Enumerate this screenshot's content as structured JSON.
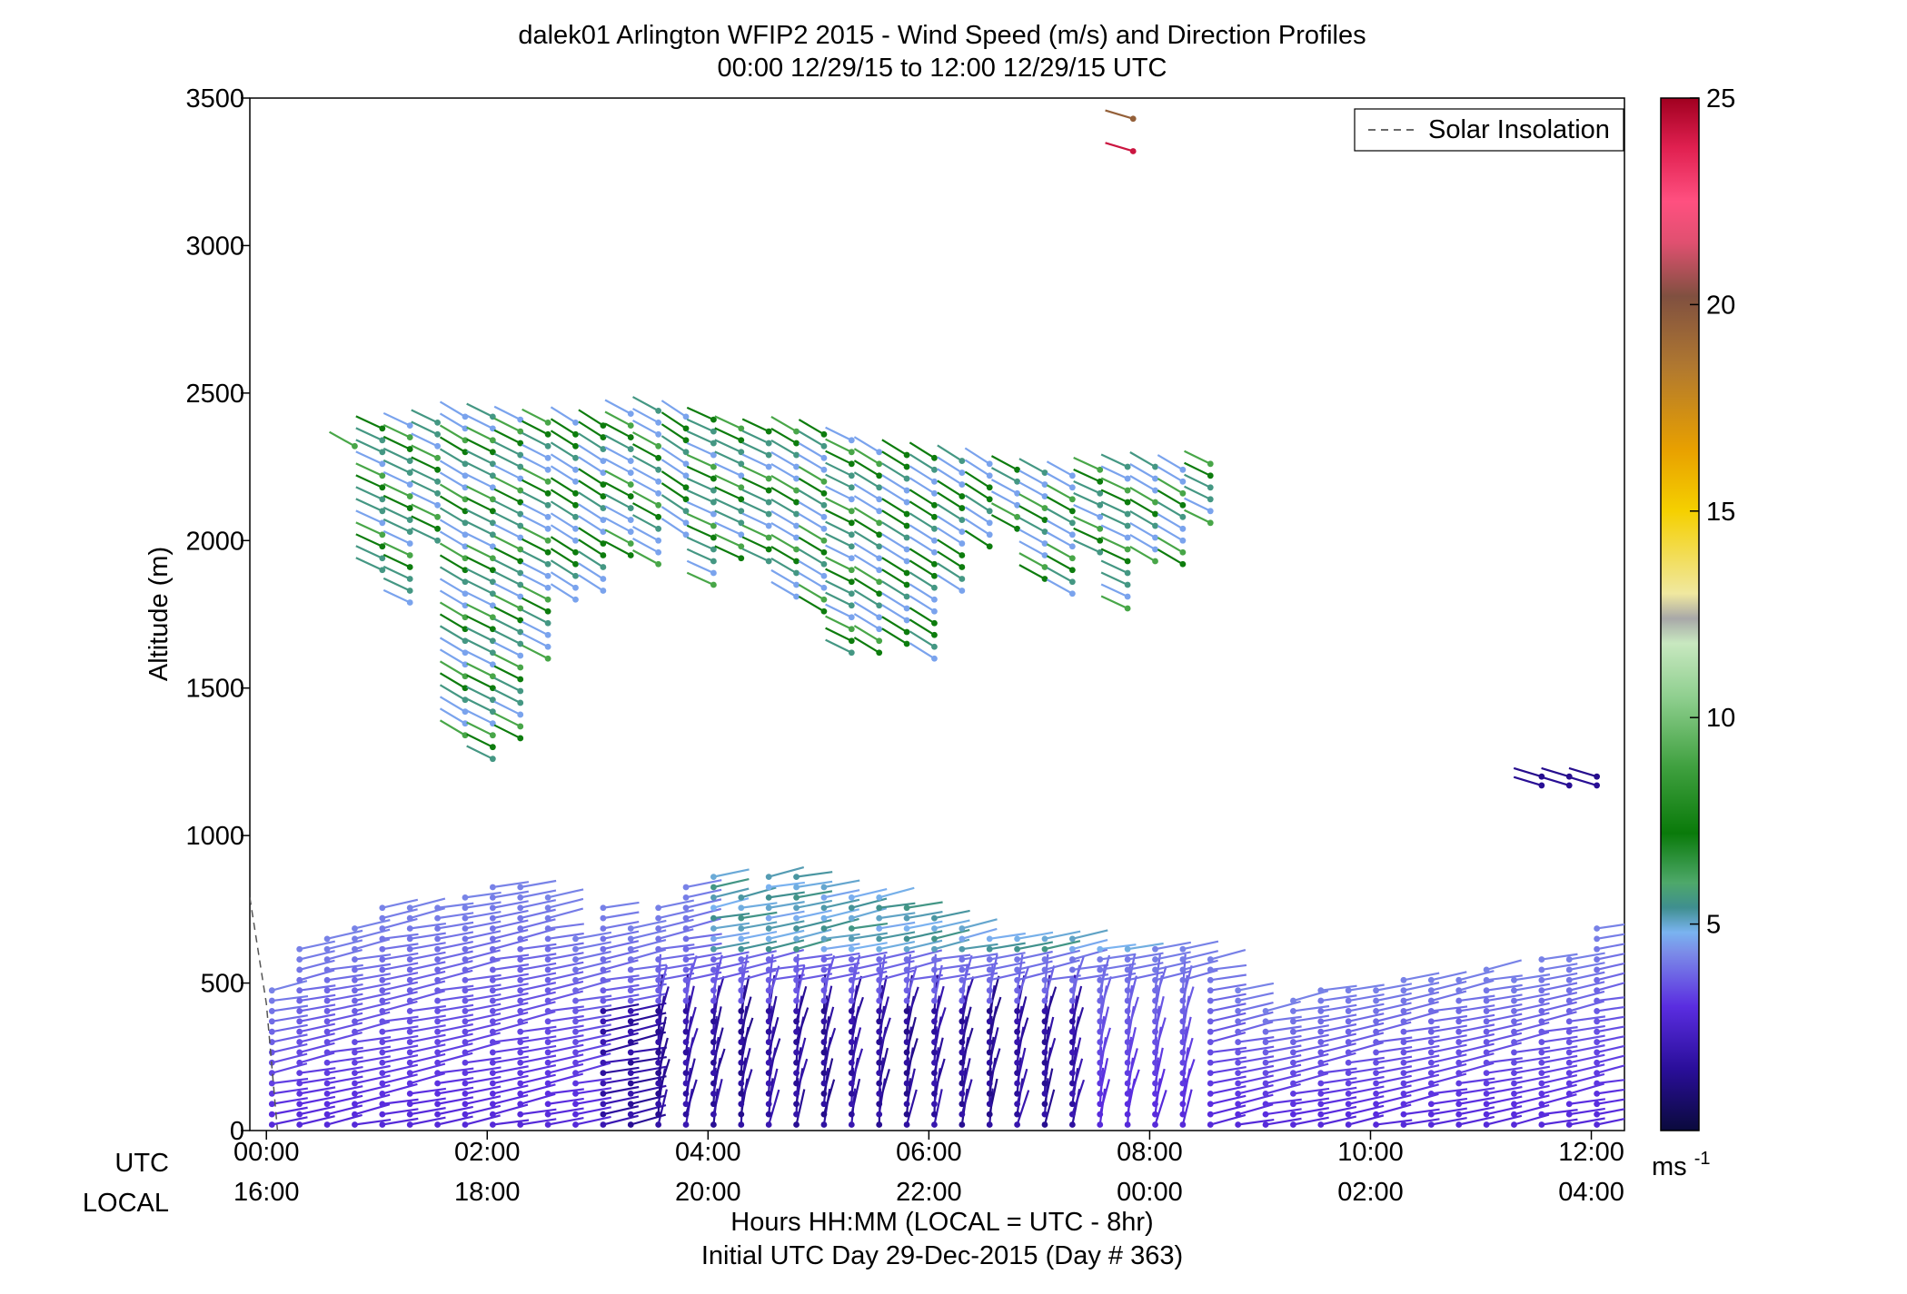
{
  "chart_data": {
    "type": "scatter",
    "title": "dalek01 Arlington WFIP2 2015 - Wind Speed (m/s) and Direction Profiles",
    "subtitle": "00:00 12/29/15 to 12:00 12/29/15  UTC",
    "ylabel": "Altitude (m)",
    "xlabel": "Hours HH:MM  (LOCAL = UTC - 8hr)",
    "xlabel2": "Initial UTC Day 29-Dec-2015 (Day # 363)",
    "row_labels": [
      "UTC",
      "LOCAL"
    ],
    "xlim": [
      -0.15,
      12.3
    ],
    "ylim": [
      0,
      3500
    ],
    "y_ticks": [
      "0",
      "500",
      "1000",
      "1500",
      "2000",
      "2500",
      "3000",
      "3500"
    ],
    "y_tick_values": [
      0,
      500,
      1000,
      1500,
      2000,
      2500,
      3000,
      3500
    ],
    "x_tick_values": [
      0,
      2,
      4,
      6,
      8,
      10,
      12
    ],
    "x_ticks_utc": [
      "00:00",
      "02:00",
      "04:00",
      "06:00",
      "08:00",
      "10:00",
      "12:00"
    ],
    "x_ticks_local": [
      "16:00",
      "18:00",
      "20:00",
      "22:00",
      "00:00",
      "02:00",
      "04:00"
    ],
    "legend": {
      "label": "Solar Insolation",
      "placement": "top-right"
    },
    "colorbar": {
      "range": [
        0,
        25
      ],
      "ticks": [
        "5",
        "10",
        "15",
        "20",
        "25"
      ],
      "tick_values": [
        5,
        10,
        15,
        20,
        25
      ],
      "unit_label": "ms",
      "unit_exponent": "-1"
    },
    "colors": {
      "stops": [
        "#0a0a3c",
        "#2a0e9a",
        "#5a2de0",
        "#7b8be8",
        "#7ab3f0",
        "#3f8f8f",
        "#4ea86a",
        "#0a7a0a",
        "#3fa03f",
        "#8fcf8f",
        "#c8e8c0",
        "#a8a8a8",
        "#f0e8a0",
        "#f5d000",
        "#e8a000",
        "#b07830",
        "#805040",
        "#e05070",
        "#ff5080",
        "#e02050",
        "#a00020"
      ],
      "stop_values": [
        0,
        1.5,
        3,
        4.3,
        4.8,
        5.4,
        6.0,
        7.2,
        8.8,
        10.5,
        11.8,
        12.4,
        13.0,
        15.0,
        16.5,
        18.5,
        20.2,
        21.5,
        22.5,
        23.8,
        25
      ],
      "insolation": "#555555"
    },
    "insolation_curve": {
      "x": [
        -0.15,
        0.0,
        0.1
      ],
      "y": [
        790,
        430,
        0
      ]
    },
    "series": [
      {
        "profiles_x": [
          0.05,
          0.3,
          0.55,
          0.8,
          1.05,
          1.3,
          1.55,
          1.8,
          2.05,
          2.3,
          2.55,
          2.8,
          3.05,
          3.3,
          3.55,
          3.8,
          4.05,
          4.3,
          4.55,
          4.8,
          5.05,
          5.3,
          5.55,
          5.8,
          6.05,
          6.3,
          6.55,
          6.8,
          7.05,
          7.3,
          7.55,
          7.8,
          8.05,
          8.3,
          8.55,
          8.8,
          9.05,
          9.3,
          9.55,
          9.8,
          10.05,
          10.3,
          10.55,
          10.8,
          11.05,
          11.3,
          11.55,
          11.8,
          12.05
        ],
        "profile_tops": [
          490,
          630,
          660,
          690,
          760,
          760,
          780,
          790,
          840,
          830,
          790,
          680,
          780,
          710,
          780,
          840,
          870,
          810,
          860,
          860,
          850,
          820,
          800,
          760,
          720,
          700,
          680,
          680,
          660,
          660,
          630,
          640,
          620,
          620,
          600,
          480,
          430,
          450,
          490,
          490,
          500,
          520,
          530,
          540,
          550,
          540,
          590,
          600,
          700
        ],
        "y_step_m": 35,
        "speed_model_ms": {
          "surface": 2.8,
          "upper": 4.2,
          "decay_near_surface": 0.02
        }
      },
      {
        "profiles_x": [
          0.8,
          1.05,
          1.3,
          1.55,
          1.8,
          2.05,
          2.3,
          2.55,
          2.8,
          3.05,
          3.3,
          3.55,
          3.8,
          4.05,
          4.3,
          4.55,
          4.8,
          5.05,
          5.3,
          5.55,
          5.8,
          6.05,
          6.3,
          6.55,
          6.8,
          7.05,
          7.3,
          7.55,
          7.8,
          8.05,
          8.3,
          8.55
        ],
        "profile_tops": [
          2320,
          2380,
          2390,
          2400,
          2420,
          2420,
          2410,
          2400,
          2400,
          2390,
          2430,
          2440,
          2420,
          2410,
          2380,
          2370,
          2370,
          2360,
          2340,
          2300,
          2290,
          2280,
          2270,
          2260,
          2240,
          2230,
          2220,
          2240,
          2250,
          2250,
          2240,
          2260
        ],
        "profile_bottoms": [
          2310,
          1900,
          1780,
          2000,
          1330,
          1240,
          1320,
          1580,
          1780,
          1820,
          1920,
          1910,
          2020,
          1850,
          1920,
          1930,
          1780,
          1750,
          1620,
          1600,
          1620,
          1570,
          1820,
          1960,
          2040,
          1870,
          1800,
          1950,
          1740,
          1900,
          1920,
          2030
        ],
        "y_step_m": 40,
        "speed_model_ms": {
          "low_range": 4.5,
          "high_range": 8.5
        }
      },
      {
        "points": [
          {
            "x": 7.85,
            "y": 3430,
            "speed": 19.5
          },
          {
            "x": 7.85,
            "y": 3320,
            "speed": 24.2
          },
          {
            "x": 11.55,
            "y": 1200,
            "speed": 1.3
          },
          {
            "x": 11.8,
            "y": 1200,
            "speed": 1.3
          },
          {
            "x": 12.05,
            "y": 1200,
            "speed": 1.3
          },
          {
            "x": 11.55,
            "y": 1170,
            "speed": 1.4
          },
          {
            "x": 11.8,
            "y": 1170,
            "speed": 1.4
          },
          {
            "x": 12.05,
            "y": 1170,
            "speed": 1.4
          }
        ]
      }
    ],
    "grid": false
  }
}
